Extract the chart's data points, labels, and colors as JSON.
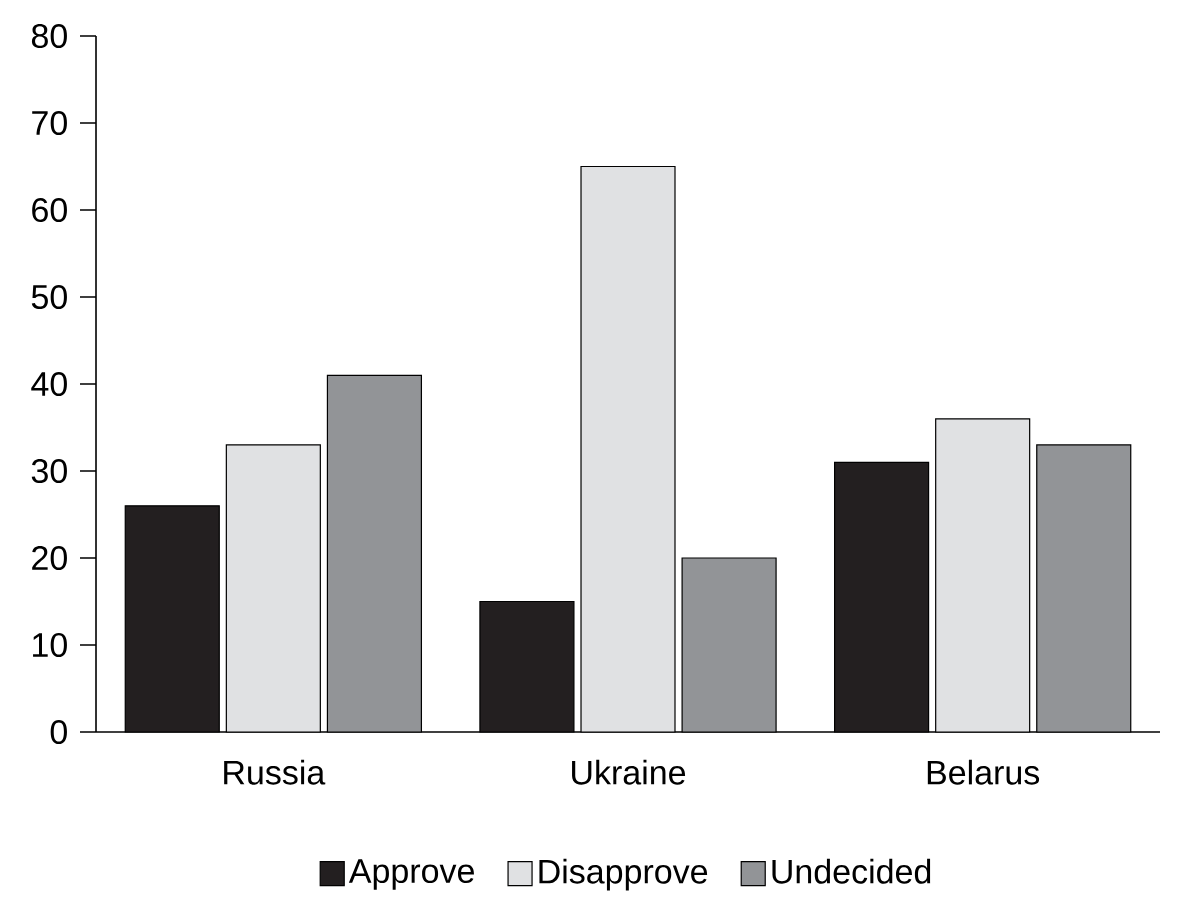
{
  "chart_data": {
    "type": "bar",
    "categories": [
      "Russia",
      "Ukraine",
      "Belarus"
    ],
    "series": [
      {
        "name": "Approve",
        "color": "#231f20",
        "values": [
          26,
          15,
          31
        ]
      },
      {
        "name": "Disapprove",
        "color": "#e0e1e3",
        "values": [
          33,
          65,
          36
        ]
      },
      {
        "name": "Undecided",
        "color": "#929497",
        "values": [
          41,
          20,
          33
        ]
      }
    ],
    "ylim": [
      0,
      80
    ],
    "yticks": [
      0,
      10,
      20,
      30,
      40,
      50,
      60,
      70,
      80
    ],
    "grid": false,
    "legend": "bottom"
  }
}
